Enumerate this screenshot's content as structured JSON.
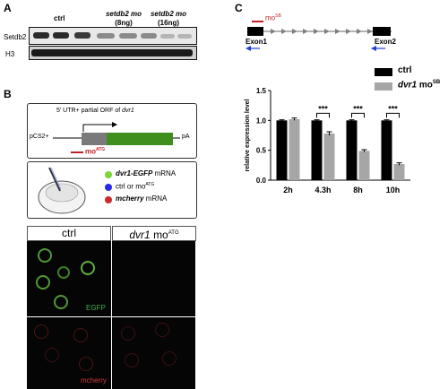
{
  "panel_a": {
    "label": "A",
    "lanes": [
      "ctrl",
      "setdb2 mo",
      "setdb2 mo"
    ],
    "doses": [
      "(8ng)",
      "(16ng)"
    ],
    "rows": [
      "Setdb2",
      "H3"
    ]
  },
  "panel_b": {
    "label": "B",
    "construct": {
      "title_prefix": "5' UTR+ partial ORF of ",
      "title_gene": "dvr1",
      "left": "pCS2+",
      "right": "pA",
      "mo": "mo",
      "mo_sup": "ATG"
    },
    "legend": [
      {
        "color": "#7ad63a",
        "gene": "dvr1-EGFP",
        "suffix": " mRNA"
      },
      {
        "color": "#2a2ae0",
        "text": "ctrl or mo",
        "sup": "ATG"
      },
      {
        "color": "#cc2b2b",
        "gene": "mcherry",
        "suffix": " mRNA"
      }
    ],
    "micrograph": {
      "col_headers": [
        "ctrl",
        "dvr1",
        "mo",
        "ATG"
      ],
      "channels": [
        "EGFP",
        "mcherry"
      ]
    }
  },
  "panel_c": {
    "label": "C",
    "gene_map": {
      "mo": "mo",
      "mo_sup": "SB",
      "exon1": "Exon1",
      "exon2": "Exon2"
    },
    "legend": [
      {
        "name": "ctrl",
        "color": "#000000"
      },
      {
        "name_gene": "dvr1",
        "name_mid": " mo",
        "name_sup": "SB",
        "color": "#a6a6a6"
      }
    ],
    "significance": [
      "***",
      "***",
      "***"
    ]
  },
  "chart_data": {
    "type": "bar",
    "categories": [
      "2h",
      "4.3h",
      "8h",
      "10h"
    ],
    "series": [
      {
        "name": "ctrl",
        "values": [
          1.0,
          1.0,
          1.0,
          1.0
        ],
        "errors": [
          0.01,
          0.01,
          0.01,
          0.01
        ],
        "color": "#000000"
      },
      {
        "name": "dvr1 moSB",
        "values": [
          1.02,
          0.78,
          0.49,
          0.27
        ],
        "errors": [
          0.02,
          0.03,
          0.02,
          0.02
        ],
        "color": "#a6a6a6"
      }
    ],
    "ylabel": "relative expression level",
    "ylim": [
      0,
      1.5
    ],
    "yticks": [
      "0.0",
      "0.5",
      "1.0",
      "1.5"
    ]
  }
}
